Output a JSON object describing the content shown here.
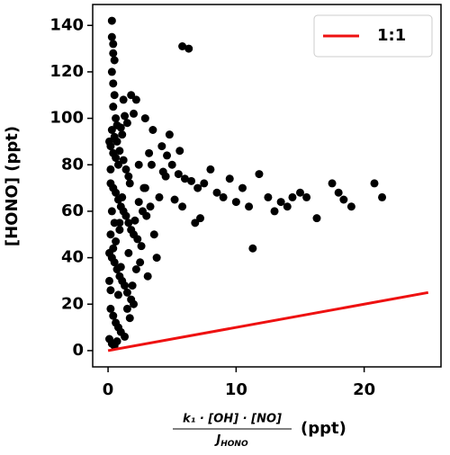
{
  "chart_data": {
    "type": "scatter",
    "ylabel": "[HONO] (ppt)",
    "xlabel": {
      "numerator": "k₁ · [OH] · [NO]",
      "denominator": "J",
      "denominator_subscript": "HONO",
      "unit": "(ppt)"
    },
    "xlim": [
      -1.2,
      26.0
    ],
    "ylim": [
      -7,
      149
    ],
    "xticks": [
      0,
      10,
      20
    ],
    "yticks": [
      0,
      20,
      40,
      60,
      80,
      100,
      120,
      140
    ],
    "legend": "upper right",
    "series": [
      {
        "color": "#000000",
        "x": [
          0.3,
          0.3,
          0.4,
          0.4,
          0.5,
          0.3,
          0.4,
          0.5,
          0.4,
          0.6,
          0.3,
          0.5,
          0.7,
          0.2,
          0.4,
          0.6,
          0.8,
          1.0,
          1.5,
          2.0,
          1.8,
          2.2,
          0.9,
          1.2,
          1.4,
          1.6,
          0.2,
          0.4,
          0.6,
          0.8,
          1.0,
          1.2,
          1.4,
          1.6,
          1.8,
          2.0,
          2.3,
          2.6,
          0.1,
          0.3,
          0.5,
          0.7,
          0.9,
          1.1,
          1.3,
          1.5,
          1.8,
          2.0,
          0.2,
          0.4,
          0.6,
          0.8,
          1.0,
          1.3,
          0.1,
          0.3,
          0.5,
          0.7,
          0.2,
          0.4,
          0.9,
          1.1,
          1.7,
          2.4,
          2.8,
          3.0,
          3.3,
          3.6,
          4.0,
          4.5,
          5.0,
          5.5,
          6.0,
          5.8,
          6.3,
          7.0,
          7.5,
          8.0,
          8.5,
          9.0,
          9.5,
          10.0,
          10.5,
          11.0,
          11.3,
          11.8,
          12.5,
          13.0,
          13.5,
          14.0,
          14.4,
          15.0,
          15.5,
          16.3,
          17.5,
          18.0,
          18.4,
          19.0,
          20.8,
          21.4,
          4.8,
          4.2,
          3.5,
          3.2,
          2.9,
          6.5,
          5.2,
          7.2,
          6.8,
          3.8,
          2.5,
          3.1,
          2.2,
          1.9,
          1.5,
          2.7,
          4.6,
          5.6,
          1.2,
          0.9,
          0.1,
          0.2,
          0.3,
          0.2,
          0.1,
          0.6,
          1.0,
          1.6,
          2.1,
          2.4,
          0.7,
          1.1,
          1.3,
          0.5,
          0.8,
          1.7,
          2.9,
          4.3,
          5.8,
          3.4
        ],
        "values": [
          142,
          135,
          132,
          128,
          125,
          120,
          115,
          110,
          105,
          100,
          95,
          92,
          90,
          88,
          85,
          83,
          80,
          96,
          98,
          102,
          110,
          108,
          86,
          82,
          78,
          75,
          72,
          70,
          68,
          65,
          62,
          60,
          58,
          55,
          52,
          50,
          48,
          45,
          42,
          40,
          38,
          35,
          32,
          30,
          28,
          25,
          22,
          20,
          18,
          15,
          12,
          10,
          8,
          6,
          5,
          3,
          2,
          4,
          26,
          44,
          55,
          66,
          72,
          64,
          70,
          58,
          62,
          50,
          66,
          75,
          80,
          76,
          74,
          131,
          130,
          70,
          72,
          78,
          68,
          66,
          74,
          64,
          70,
          62,
          44,
          76,
          66,
          60,
          64,
          62,
          66,
          68,
          66,
          57,
          72,
          68,
          65,
          62,
          72,
          66,
          93,
          88,
          95,
          85,
          100,
          73,
          65,
          57,
          55,
          40,
          38,
          32,
          35,
          28,
          18,
          60,
          84,
          86,
          108,
          52,
          30,
          50,
          60,
          78,
          90,
          47,
          36,
          42,
          56,
          80,
          97,
          93,
          101,
          55,
          24,
          14,
          70,
          77,
          62,
          80
        ]
      },
      {
        "type": "line",
        "name": "1:1",
        "color": "#ee1111",
        "x": [
          0,
          25
        ],
        "values": [
          0,
          25
        ]
      }
    ]
  }
}
